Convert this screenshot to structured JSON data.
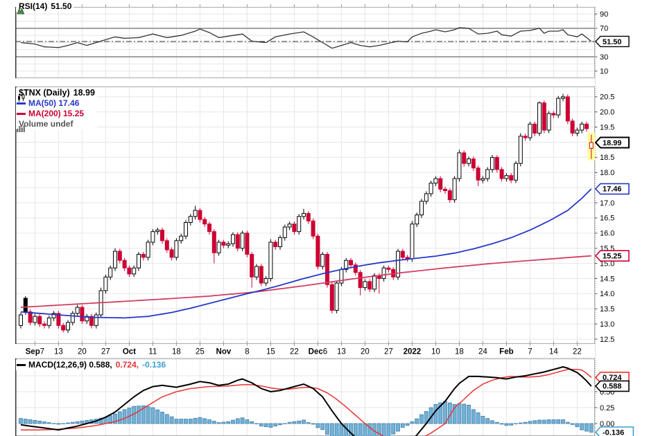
{
  "legend": {
    "rsi": {
      "label": "RSI(14)",
      "value": "51.50"
    },
    "price": {
      "symbol": "$TNX (Daily)",
      "value": "18.99"
    },
    "ma50": "MA(50) 17.46",
    "ma200": "MA(200) 15.25",
    "volume": "Volume undef",
    "macd_parts": {
      "black": "MACD(12,26,9) 0.588,",
      "red": "0.724,",
      "blue": "-0.136"
    }
  },
  "colors": {
    "up": "#000000",
    "down": "#cc0033",
    "ma50": "#2637c8",
    "ma200": "#d23f5f",
    "rsi_line": "#333333",
    "macd_line": "#000000",
    "signal_line": "#e93232",
    "hist_fill": "#72b2d8",
    "hist_stroke": "#3f7ea8",
    "grid": "#e6e6e6",
    "grid_strong": "#8c8c8c",
    "border": "#aaaaaa",
    "highlight": "#ffff99",
    "legend_volume": "#555555",
    "box_black": "#000000",
    "box_blue": "#2637c8",
    "box_red": "#cc0033",
    "box_signal_red": "#e93232",
    "box_hist_blue": "#3ba0d0"
  },
  "axes": {
    "rsi_labels": [
      "90",
      "70",
      "30",
      "10"
    ],
    "rsi_box": {
      "text": "51.50",
      "value": 51.5
    },
    "price_labels": [
      "20.5",
      "20.0",
      "19.5",
      "18.5",
      "18.0",
      "17.0",
      "16.5",
      "16.0",
      "15.5",
      "15.0",
      "14.5",
      "14.0",
      "13.5",
      "13.0",
      "12.5"
    ],
    "price_boxes": [
      {
        "text": "18.99",
        "value": 18.99,
        "color": "#000000",
        "stroke": 2
      },
      {
        "text": "17.46",
        "value": 17.46,
        "color": "#2637c8",
        "stroke": 1.6
      },
      {
        "text": "15.25",
        "value": 15.25,
        "color": "#cc0033",
        "stroke": 1.6
      }
    ],
    "macd_labels": [
      "0.50",
      "0.25",
      "0.00"
    ],
    "macd_boxes": [
      {
        "text": "0.724",
        "value": 0.724,
        "color": "#e93232",
        "stroke": 1.6
      },
      {
        "text": "0.588",
        "value": 0.588,
        "color": "#000000",
        "stroke": 1.6
      },
      {
        "text": "-0.136",
        "value": -0.136,
        "color": "#3ba0d0",
        "stroke": 1.6
      }
    ]
  },
  "x_axis": {
    "label_start_day": 3,
    "label_step": 5,
    "labels": [
      {
        "bold": "Sep",
        "rest": "7"
      },
      {
        "bold": "",
        "rest": "13"
      },
      {
        "bold": "",
        "rest": "20"
      },
      {
        "bold": "",
        "rest": "27"
      },
      {
        "bold": "Oct",
        "rest": ""
      },
      {
        "bold": "",
        "rest": "11"
      },
      {
        "bold": "",
        "rest": "18"
      },
      {
        "bold": "",
        "rest": "25"
      },
      {
        "bold": "Nov",
        "rest": ""
      },
      {
        "bold": "",
        "rest": "8"
      },
      {
        "bold": "",
        "rest": "15"
      },
      {
        "bold": "",
        "rest": "22"
      },
      {
        "bold": "Dec",
        "rest": "6"
      },
      {
        "bold": "",
        "rest": "13"
      },
      {
        "bold": "",
        "rest": "20"
      },
      {
        "bold": "",
        "rest": "27"
      },
      {
        "bold": "2022",
        "rest": ""
      },
      {
        "bold": "",
        "rest": "10"
      },
      {
        "bold": "",
        "rest": "18"
      },
      {
        "bold": "",
        "rest": "24"
      },
      {
        "bold": "Feb",
        "rest": ""
      },
      {
        "bold": "",
        "rest": "7"
      },
      {
        "bold": "",
        "rest": "14"
      },
      {
        "bold": "",
        "rest": "22"
      }
    ]
  },
  "chart_data": {
    "type": "candlestick",
    "symbol": "$TNX",
    "timeframe": "Daily",
    "title": "$TNX (Daily) 18.99",
    "last_price": 18.99,
    "num_days": 122,
    "price_axis": {
      "min": 12.34,
      "max": 20.84,
      "grid_step": 0.5,
      "grid_min": 12.5,
      "grid_max": 20.5
    },
    "rsi_axis": {
      "min": 0,
      "max": 100,
      "overbought": 70,
      "oversold": 30,
      "current": 51.5
    },
    "macd_axis": {
      "min": -0.196,
      "max": 1.02,
      "gridlines": [
        0.75,
        0.5,
        0.25,
        0
      ]
    },
    "volume": "undef",
    "close": [
      13.3,
      13.4,
      13.05,
      13.25,
      13.0,
      12.95,
      13.2,
      13.35,
      12.95,
      12.8,
      13.05,
      13.35,
      13.55,
      13.1,
      13.25,
      12.95,
      13.3,
      14.1,
      14.55,
      14.85,
      15.4,
      15.1,
      14.85,
      14.65,
      14.85,
      15.3,
      15.2,
      15.7,
      16.05,
      16.1,
      15.75,
      15.45,
      15.2,
      15.75,
      15.9,
      16.35,
      16.55,
      16.75,
      16.45,
      16.3,
      16.05,
      15.35,
      15.7,
      15.6,
      15.65,
      15.95,
      15.5,
      16.0,
      15.3,
      14.55,
      14.9,
      14.35,
      14.5,
      15.7,
      15.55,
      15.85,
      16.2,
      16.3,
      16.05,
      16.55,
      16.65,
      16.4,
      15.9,
      14.9,
      15.3,
      14.3,
      13.45,
      14.35,
      14.8,
      15.1,
      14.95,
      14.7,
      14.2,
      14.4,
      14.15,
      14.6,
      14.5,
      14.85,
      14.8,
      14.55,
      15.4,
      15.2,
      15.15,
      16.3,
      16.6,
      17.05,
      17.3,
      17.65,
      17.8,
      17.45,
      17.4,
      17.1,
      17.8,
      18.65,
      18.3,
      18.45,
      18.15,
      17.75,
      17.8,
      18.1,
      18.5,
      18.1,
      17.8,
      17.9,
      17.75,
      18.3,
      19.2,
      19.15,
      19.6,
      19.3,
      20.3,
      19.4,
      19.95,
      19.9,
      20.45,
      20.5,
      19.7,
      19.3,
      19.4,
      19.6,
      19.45,
      18.99
    ],
    "open_rule": "previous_close",
    "first_open": 12.95,
    "default_wick": {
      "high_pad": 0.08,
      "low_pad": 0.1
    },
    "ohlc_overrides": {
      "0": {
        "o": 12.95
      },
      "1": {
        "o": 13.85,
        "h": 13.92
      },
      "9": {
        "l": 12.72
      },
      "17": {
        "h": 14.2
      },
      "20": {
        "h": 15.5
      },
      "37": {
        "h": 16.9
      },
      "41": {
        "l": 15.0
      },
      "49": {
        "l": 14.2
      },
      "53": {
        "h": 15.8
      },
      "60": {
        "h": 16.8
      },
      "66": {
        "l": 13.35
      },
      "72": {
        "l": 13.95
      },
      "76": {
        "l": 14.0
      },
      "83": {
        "h": 16.4
      },
      "93": {
        "h": 18.75
      },
      "97": {
        "l": 17.55
      },
      "106": {
        "h": 19.3
      },
      "110": {
        "h": 20.35
      },
      "115": {
        "h": 20.6
      },
      "121": {
        "o": 18.8,
        "h": 19.25,
        "l": 18.45
      }
    },
    "highlight_last_candle": true,
    "ma50_anchors": [
      [
        0,
        13.4
      ],
      [
        8,
        13.3
      ],
      [
        15,
        13.22
      ],
      [
        22,
        13.2
      ],
      [
        27,
        13.25
      ],
      [
        32,
        13.38
      ],
      [
        36,
        13.52
      ],
      [
        40,
        13.68
      ],
      [
        44,
        13.84
      ],
      [
        48,
        14.0
      ],
      [
        52,
        14.15
      ],
      [
        56,
        14.32
      ],
      [
        60,
        14.5
      ],
      [
        64,
        14.66
      ],
      [
        68,
        14.8
      ],
      [
        72,
        14.92
      ],
      [
        76,
        15.02
      ],
      [
        80,
        15.1
      ],
      [
        84,
        15.17
      ],
      [
        88,
        15.24
      ],
      [
        92,
        15.34
      ],
      [
        96,
        15.48
      ],
      [
        100,
        15.65
      ],
      [
        104,
        15.85
      ],
      [
        108,
        16.1
      ],
      [
        112,
        16.4
      ],
      [
        116,
        16.75
      ],
      [
        119,
        17.15
      ],
      [
        121,
        17.46
      ]
    ],
    "ma200_anchors": [
      [
        0,
        13.55
      ],
      [
        10,
        13.64
      ],
      [
        20,
        13.73
      ],
      [
        30,
        13.82
      ],
      [
        40,
        13.92
      ],
      [
        50,
        14.06
      ],
      [
        60,
        14.26
      ],
      [
        70,
        14.48
      ],
      [
        80,
        14.68
      ],
      [
        90,
        14.85
      ],
      [
        100,
        15.0
      ],
      [
        110,
        15.12
      ],
      [
        121,
        15.25
      ]
    ],
    "rsi_anchors": [
      [
        0,
        50
      ],
      [
        3,
        48
      ],
      [
        5,
        44
      ],
      [
        8,
        43
      ],
      [
        10,
        46
      ],
      [
        12,
        50
      ],
      [
        14,
        46
      ],
      [
        17,
        52
      ],
      [
        20,
        58
      ],
      [
        22,
        56
      ],
      [
        25,
        57
      ],
      [
        28,
        62
      ],
      [
        31,
        57
      ],
      [
        34,
        60
      ],
      [
        37,
        66
      ],
      [
        38,
        69
      ],
      [
        40,
        64
      ],
      [
        42,
        57
      ],
      [
        45,
        60
      ],
      [
        47,
        62
      ],
      [
        49,
        52
      ],
      [
        52,
        50
      ],
      [
        54,
        58
      ],
      [
        57,
        62
      ],
      [
        60,
        65
      ],
      [
        62,
        58
      ],
      [
        64,
        50
      ],
      [
        66,
        42
      ],
      [
        68,
        46
      ],
      [
        70,
        50
      ],
      [
        72,
        46
      ],
      [
        74,
        44
      ],
      [
        76,
        46
      ],
      [
        78,
        49
      ],
      [
        80,
        52
      ],
      [
        82,
        51
      ],
      [
        83,
        58
      ],
      [
        85,
        63
      ],
      [
        87,
        66
      ],
      [
        88,
        68
      ],
      [
        90,
        65
      ],
      [
        92,
        68
      ],
      [
        93,
        71
      ],
      [
        95,
        70
      ],
      [
        97,
        62
      ],
      [
        99,
        63
      ],
      [
        101,
        66
      ],
      [
        102,
        61
      ],
      [
        104,
        59
      ],
      [
        106,
        66
      ],
      [
        108,
        67
      ],
      [
        110,
        70
      ],
      [
        111,
        63
      ],
      [
        112,
        66
      ],
      [
        114,
        66
      ],
      [
        115,
        68
      ],
      [
        116,
        61
      ],
      [
        118,
        58
      ],
      [
        119,
        62
      ],
      [
        120,
        57
      ],
      [
        121,
        51.5
      ]
    ],
    "macd_anchors": [
      [
        0,
        -0.02
      ],
      [
        4,
        -0.06
      ],
      [
        8,
        -0.1
      ],
      [
        12,
        -0.04
      ],
      [
        16,
        0.04
      ],
      [
        18,
        0.1
      ],
      [
        20,
        0.18
      ],
      [
        22,
        0.3
      ],
      [
        24,
        0.42
      ],
      [
        26,
        0.52
      ],
      [
        28,
        0.58
      ],
      [
        30,
        0.6
      ],
      [
        33,
        0.57
      ],
      [
        36,
        0.62
      ],
      [
        38,
        0.66
      ],
      [
        40,
        0.64
      ],
      [
        42,
        0.6
      ],
      [
        44,
        0.62
      ],
      [
        46,
        0.68
      ],
      [
        47,
        0.7
      ],
      [
        49,
        0.64
      ],
      [
        51,
        0.55
      ],
      [
        53,
        0.5
      ],
      [
        55,
        0.52
      ],
      [
        57,
        0.56
      ],
      [
        59,
        0.6
      ],
      [
        60,
        0.62
      ],
      [
        62,
        0.55
      ],
      [
        64,
        0.42
      ],
      [
        66,
        0.2
      ],
      [
        68,
        0
      ],
      [
        70,
        -0.15
      ],
      [
        72,
        -0.28
      ],
      [
        74,
        -0.38
      ],
      [
        76,
        -0.44
      ],
      [
        78,
        -0.45
      ],
      [
        80,
        -0.4
      ],
      [
        82,
        -0.32
      ],
      [
        84,
        -0.18
      ],
      [
        86,
        0
      ],
      [
        88,
        0.2
      ],
      [
        90,
        0.35
      ],
      [
        92,
        0.55
      ],
      [
        93,
        0.63
      ],
      [
        95,
        0.74
      ],
      [
        97,
        0.74
      ],
      [
        99,
        0.73
      ],
      [
        101,
        0.72
      ],
      [
        103,
        0.7
      ],
      [
        105,
        0.73
      ],
      [
        107,
        0.75
      ],
      [
        109,
        0.78
      ],
      [
        111,
        0.81
      ],
      [
        113,
        0.85
      ],
      [
        115,
        0.89
      ],
      [
        116,
        0.87
      ],
      [
        118,
        0.8
      ],
      [
        119,
        0.74
      ],
      [
        120,
        0.67
      ],
      [
        121,
        0.588
      ]
    ],
    "signal_anchors": [
      [
        0,
        -0.1
      ],
      [
        4,
        -0.1
      ],
      [
        8,
        -0.09
      ],
      [
        12,
        -0.07
      ],
      [
        16,
        -0.03
      ],
      [
        20,
        0.03
      ],
      [
        22,
        0.08
      ],
      [
        24,
        0.15
      ],
      [
        26,
        0.24
      ],
      [
        28,
        0.33
      ],
      [
        30,
        0.42
      ],
      [
        33,
        0.5
      ],
      [
        36,
        0.55
      ],
      [
        40,
        0.58
      ],
      [
        44,
        0.59
      ],
      [
        47,
        0.61
      ],
      [
        49,
        0.61
      ],
      [
        51,
        0.59
      ],
      [
        53,
        0.56
      ],
      [
        55,
        0.54
      ],
      [
        57,
        0.54
      ],
      [
        59,
        0.56
      ],
      [
        61,
        0.57
      ],
      [
        63,
        0.55
      ],
      [
        65,
        0.48
      ],
      [
        67,
        0.38
      ],
      [
        69,
        0.26
      ],
      [
        71,
        0.13
      ],
      [
        73,
        0
      ],
      [
        75,
        -0.12
      ],
      [
        77,
        -0.2
      ],
      [
        79,
        -0.26
      ],
      [
        81,
        -0.3
      ],
      [
        83,
        -0.28
      ],
      [
        85,
        -0.23
      ],
      [
        87,
        -0.15
      ],
      [
        89,
        -0.05
      ],
      [
        90,
        0
      ],
      [
        92,
        0.25
      ],
      [
        94,
        0.38
      ],
      [
        96,
        0.52
      ],
      [
        98,
        0.62
      ],
      [
        100,
        0.68
      ],
      [
        102,
        0.72
      ],
      [
        104,
        0.74
      ],
      [
        106,
        0.73
      ],
      [
        108,
        0.73
      ],
      [
        110,
        0.74
      ],
      [
        112,
        0.77
      ],
      [
        114,
        0.81
      ],
      [
        116,
        0.85
      ],
      [
        118,
        0.85
      ],
      [
        119,
        0.84
      ],
      [
        120,
        0.79
      ],
      [
        121,
        0.724
      ]
    ]
  }
}
